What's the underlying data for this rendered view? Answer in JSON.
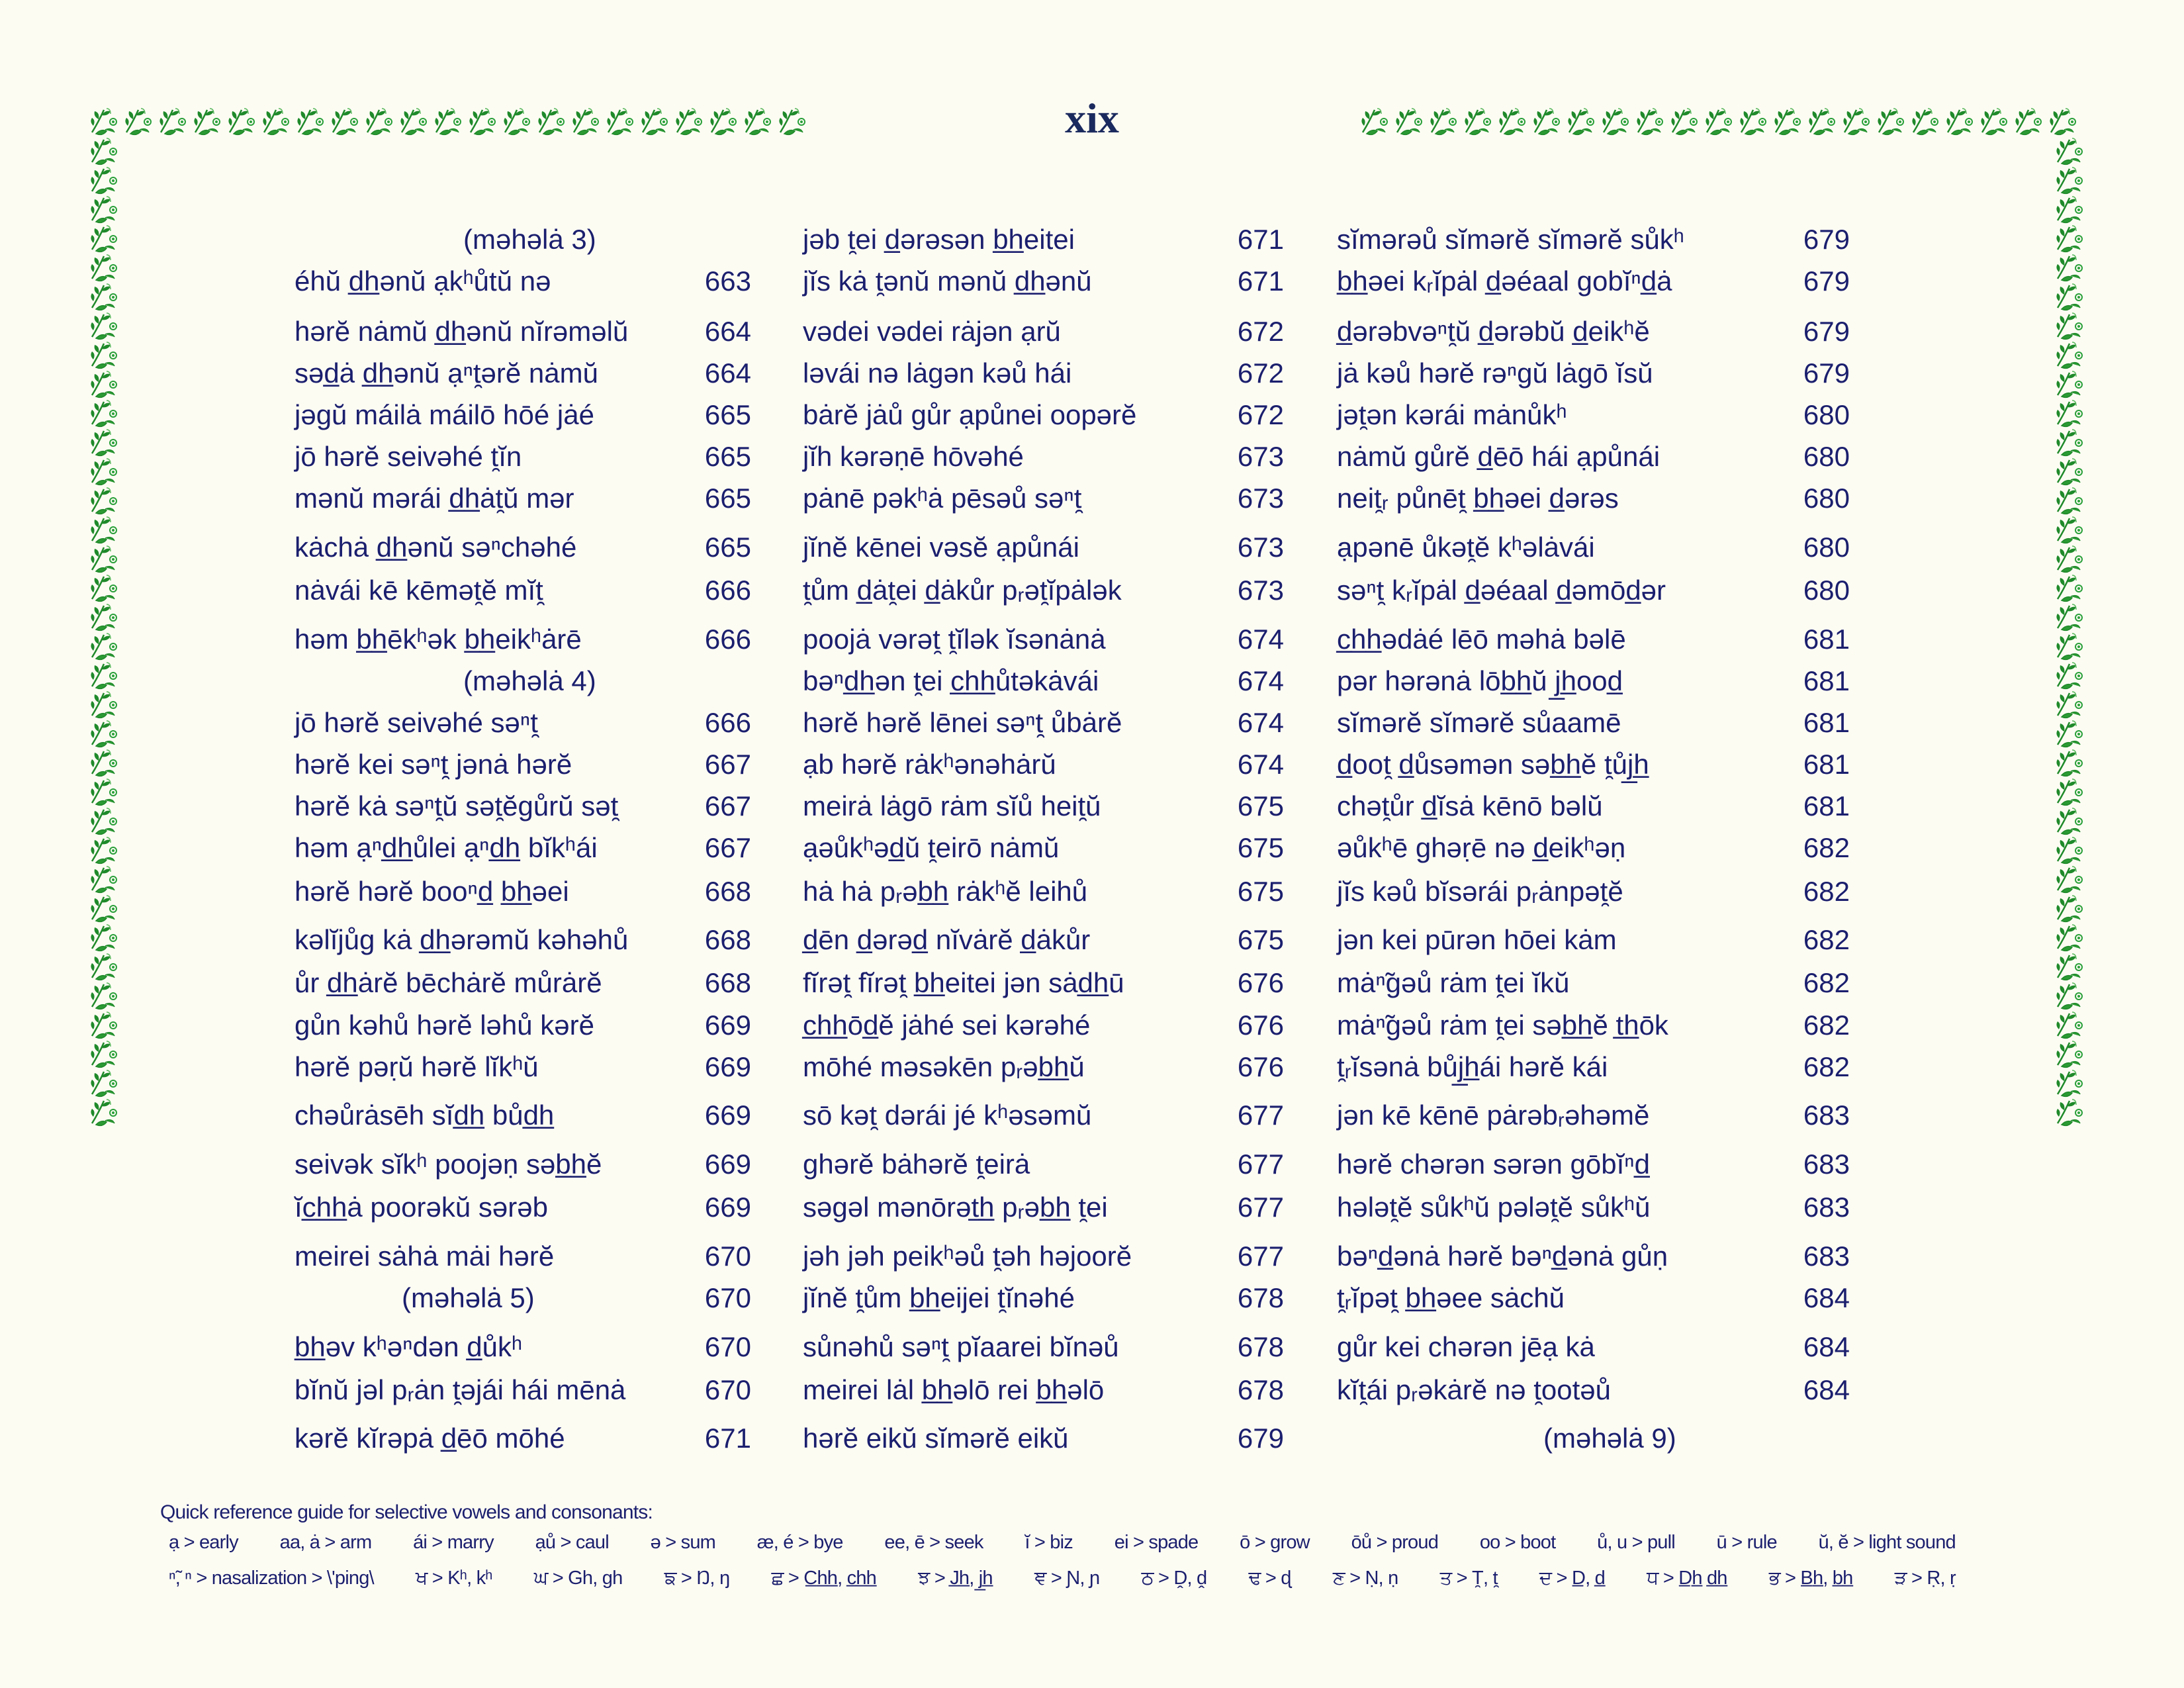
{
  "page_number": "xix",
  "colors": {
    "text": "#1b1f6e",
    "light_sound": "#8a8a8a",
    "border": "#1f8a2a",
    "background": "#fdfcf3"
  },
  "border_icon": "floral-vine-icon",
  "columns": [
    {
      "entries": [
        {
          "text": "(məhəlȧ 3)",
          "page": "",
          "heading": true
        },
        {
          "text": "éhŭ d̲h̲ənŭ ạkʰůtŭ nə",
          "page": "663"
        },
        {
          "text": "hərĕ nȧmŭ d̲h̲ənŭ nĭrəməlŭ",
          "page": "664"
        },
        {
          "text": "səd̲ȧ d̲h̲ənŭ ạⁿt̯ərĕ nȧmŭ",
          "page": "664"
        },
        {
          "text": "jəgŭ máilȧ máilō hōé jȧé",
          "page": "665"
        },
        {
          "text": "jō hərĕ seivəhé t̯ĭn",
          "page": "665"
        },
        {
          "text": "mənŭ mərái d̲h̲ȧt̯ŭ mər",
          "page": "665"
        },
        {
          "text": "kȧchȧ d̲h̲ənŭ səⁿchəhé",
          "page": "665"
        },
        {
          "text": "nȧvái kē kēmət̯ĕ mĭt̯",
          "page": "666"
        },
        {
          "text": "həm b̲h̲ēkʰək b̲h̲eikʰȧrē",
          "page": "666"
        },
        {
          "text": "(məhəlȧ 4)",
          "page": "",
          "heading": true
        },
        {
          "text": "jō hərĕ seivəhé səⁿt̯",
          "page": "666"
        },
        {
          "text": "hərĕ kei səⁿt̯ jənȧ hərĕ",
          "page": "667"
        },
        {
          "text": "hərĕ kȧ səⁿt̯ŭ sət̯ĕgůrŭ sət̯",
          "page": "667"
        },
        {
          "text": "həm ạⁿd̲h̲ůlei ạⁿd̲h̲ bĭkʰái",
          "page": "667"
        },
        {
          "text": "hərĕ hərĕ booⁿd̲ b̲h̲əei",
          "page": "668"
        },
        {
          "text": "kəlĭjůg kȧ d̲h̲ərəmŭ kəhəhů",
          "page": "668"
        },
        {
          "text": "ůr d̲h̲ȧrĕ bēchȧrĕ můrȧrĕ",
          "page": "668"
        },
        {
          "text": "gůn kəhů hərĕ ləhů kərĕ",
          "page": "669"
        },
        {
          "text": "hərĕ pəṛŭ hərĕ lĭkʰŭ",
          "page": "669"
        },
        {
          "text": "chəůrȧsēh sĭd̲h̲ bůd̲h̲",
          "page": "669"
        },
        {
          "text": "seivək sĭkʰ poojəṇ səb̲h̲ĕ",
          "page": "669"
        },
        {
          "text": "ĭc̲h̲h̲ȧ poorəkŭ sərəb",
          "page": "669"
        },
        {
          "text": "meirei sȧhȧ mȧi hərĕ",
          "page": "670"
        },
        {
          "text": "(məhəlȧ 5)",
          "page": "670",
          "heading": true
        },
        {
          "text": "b̲h̲əv kʰəⁿdən d̲ůkʰ",
          "page": "670"
        },
        {
          "text": "bĭnŭ jəl pᵣȧn t̯əjái hái mēnȧ",
          "page": "670"
        },
        {
          "text": "kərĕ kĭrəpȧ d̲ēō mōhé",
          "page": "671"
        }
      ]
    },
    {
      "entries": [
        {
          "text": "jəb t̯ei d̲ərəsən b̲h̲eitei",
          "page": "671"
        },
        {
          "text": "jĭs kȧ t̯ənŭ mənŭ d̲h̲ənŭ",
          "page": "671"
        },
        {
          "text": "vədei vədei rȧjən ạrŭ",
          "page": "672"
        },
        {
          "text": "ləvái nə lȧgən kəů hái",
          "page": "672"
        },
        {
          "text": "bȧrĕ jȧů gůr ạpůnei oopərĕ",
          "page": "672"
        },
        {
          "text": "jĭh kərəṇē hōvəhé",
          "page": "673"
        },
        {
          "text": "pȧnē pəkʰȧ pēsəů səⁿt̯",
          "page": "673"
        },
        {
          "text": "jĭnĕ kēnei vəsĕ ạpůnái",
          "page": "673"
        },
        {
          "text": "t̯ům d̲ȧt̯ei d̲ȧkůr pᵣət̯ĭpȧlək",
          "page": "673"
        },
        {
          "text": "poojȧ vərət̯ t̯ĭlək ĭsənȧnȧ",
          "page": "674"
        },
        {
          "text": "bəⁿd̲h̲ən t̯ei c̲h̲h̲ůtəkȧvái",
          "page": "674"
        },
        {
          "text": "hərĕ hərĕ lēnei səⁿt̯ ůbȧrĕ",
          "page": "674"
        },
        {
          "text": "ạb hərĕ rȧkʰənəhȧrŭ",
          "page": "674"
        },
        {
          "text": "meirȧ lȧgō rȧm sĭů heit̯ŭ",
          "page": "675"
        },
        {
          "text": "ạəůkʰəd̲ŭ t̯eirō nȧmŭ",
          "page": "675"
        },
        {
          "text": "hȧ hȧ pᵣəb̲h̲ rȧkʰĕ leihů",
          "page": "675"
        },
        {
          "text": "d̲ēn d̲ərəd̲ nĭvȧrĕ d̲ȧkůr",
          "page": "675"
        },
        {
          "text": "fĭrət̯ fĭrət̯ b̲h̲eitei jən sȧd̲h̲ū",
          "page": "676"
        },
        {
          "text": "c̲h̲h̲ōd̲ĕ jȧhé sei kərəhé",
          "page": "676"
        },
        {
          "text": "mōhé məsəkēn pᵣəb̲h̲ŭ",
          "page": "676"
        },
        {
          "text": "sō kət̯ dərái jé kʰəsəmŭ",
          "page": "677"
        },
        {
          "text": "ghərĕ bȧhərĕ t̯eirȧ",
          "page": "677"
        },
        {
          "text": "səgəl mənōrət̲h̲ pᵣəb̲h̲ t̯ei",
          "page": "677"
        },
        {
          "text": "jəh jəh peikʰəů t̯əh həjoorĕ",
          "page": "677"
        },
        {
          "text": "jĭnĕ t̯ům b̲h̲eijei t̯ĭnəhé",
          "page": "678"
        },
        {
          "text": "sůnəhů səⁿt̯ pĭaarei bĭnəů",
          "page": "678"
        },
        {
          "text": "meirei lȧl b̲h̲əlō rei b̲h̲əlō",
          "page": "678"
        },
        {
          "text": "hərĕ eikŭ sĭmərĕ eikŭ",
          "page": "679"
        }
      ]
    },
    {
      "entries": [
        {
          "text": "sĭmərəů sĭmərĕ sĭmərĕ sůkʰ",
          "page": "679"
        },
        {
          "text": "b̲h̲əei kᵣĭpȧl d̲əéaal gobĭⁿd̲ȧ",
          "page": "679"
        },
        {
          "text": "d̲ərəbvəⁿt̯ŭ d̲ərəbŭ d̲eikʰĕ",
          "page": "679"
        },
        {
          "text": "jȧ kəů hərĕ rəⁿgŭ lȧgō ĭsŭ",
          "page": "679"
        },
        {
          "text": "jət̯ən kərái mȧnůkʰ",
          "page": "680"
        },
        {
          "text": "nȧmŭ gůrĕ d̲ēō hái ạpůnái",
          "page": "680"
        },
        {
          "text": "neit̯ᵣ půnēt̯ b̲h̲əei d̲ərəs",
          "page": "680"
        },
        {
          "text": "ạpənē ůkət̯ĕ kʰəlȧvái",
          "page": "680"
        },
        {
          "text": "səⁿt̯ kᵣĭpȧl d̲əéaal d̲əmōd̲ər",
          "page": "680"
        },
        {
          "text": "c̲h̲h̲ədȧé lēō məhȧ bəlē",
          "page": "681"
        },
        {
          "text": "pər hərənȧ lōb̲h̲ŭ j̲h̲ood̲",
          "page": "681"
        },
        {
          "text": "sĭmərĕ sĭmərĕ sůaamē",
          "page": "681"
        },
        {
          "text": "d̲oot̯ d̲ůsəmən səb̲h̲ĕ t̯ůj̲h̲",
          "page": "681"
        },
        {
          "text": "chət̯ůr d̲ĭsȧ kēnō bəlŭ",
          "page": "681"
        },
        {
          "text": "əůkʰē ghəṛē nə d̲eikʰəṇ",
          "page": "682"
        },
        {
          "text": "jĭs kəů bĭsərái pᵣȧnpət̯ĕ",
          "page": "682"
        },
        {
          "text": "jən kei pūrən hōei kȧm",
          "page": "682"
        },
        {
          "text": "mȧⁿ̃gəů rȧm t̯ei ĭkŭ",
          "page": "682"
        },
        {
          "text": "mȧⁿ̃gəů rȧm t̯ei səb̲h̲ĕ t̲h̲ōk",
          "page": "682"
        },
        {
          "text": "t̯ᵣĭsənȧ bůj̲h̲ái hərĕ kái",
          "page": "682"
        },
        {
          "text": "jən kē kēnē pȧrəbᵣəhəmĕ",
          "page": "683"
        },
        {
          "text": "hərĕ chərən sərən gōbĭⁿd̲",
          "page": "683"
        },
        {
          "text": "hələt̯ĕ sůkʰŭ pələt̯ĕ sůkʰŭ",
          "page": "683"
        },
        {
          "text": "bəⁿd̲ənȧ hərĕ bəⁿd̲ənȧ gůṇ",
          "page": "683"
        },
        {
          "text": "t̯ᵣĭpət̯ b̲h̲əee sȧchŭ",
          "page": "684"
        },
        {
          "text": "gůr kei chərən jēạ kȧ",
          "page": "684"
        },
        {
          "text": "kĭt̯ái pᵣəkȧrĕ nə t̯ootəů",
          "page": "684"
        },
        {
          "text": "(məhəlȧ 9)",
          "page": "",
          "heading": true
        }
      ]
    }
  ],
  "guide": {
    "title": "Quick reference guide for selective vowels and consonants:",
    "vowels": [
      "ạ > early",
      "aa, ȧ > arm",
      "ái > marry",
      "ạů > caul",
      "ə > sum",
      "æ, é > bye",
      "ee, ē > seek",
      "ĭ > biz",
      "ei > spade",
      "ō > grow",
      "ōů > proud",
      "oo > boot",
      "ů, u > pull",
      "ū > rule",
      "ŭ, ĕ > light sound"
    ],
    "consonants": [
      "ⁿ̃, ⁿ > nasalization > \\'ping\\",
      "ਖ > Kʰ, kʰ",
      "ਘ > Gh, gh",
      "ਙ > Ŋ, ŋ",
      "ਛ > C̲h̲h̲, c̲h̲h̲",
      "ਝ > J̲h̲, j̲h̲",
      "ਞ > Ɲ, ɲ",
      "ਠ > Ḓ, ḓ",
      "ਢ > ɖ",
      "ਣ > Ṇ, ṇ",
      "ਤ > T̯, t̯",
      "ਦ > D̲, d̲",
      "ਧ > D̲h̲ d̲h̲",
      "ਭ > B̲h̲, b̲h̲",
      "ੜ > Ṛ, ṛ"
    ]
  }
}
